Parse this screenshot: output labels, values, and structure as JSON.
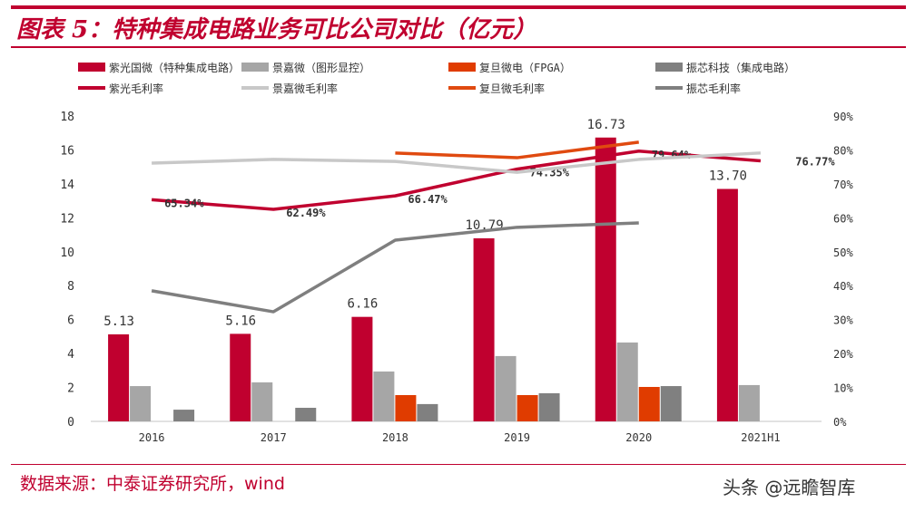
{
  "title": "图表 5：特种集成电路业务可比公司对比（亿元）",
  "source": "数据来源：中泰证券研究所，wind",
  "watermark": "头条 @远瞻智库",
  "chart_data": {
    "type": "bar+line",
    "categories": [
      "2016",
      "2017",
      "2018",
      "2019",
      "2020",
      "2021H1"
    ],
    "y_left": {
      "range": [
        0,
        18
      ],
      "ticks": [
        0,
        2,
        4,
        6,
        8,
        10,
        12,
        14,
        16,
        18
      ]
    },
    "y_right": {
      "range": [
        0,
        90
      ],
      "ticks": [
        "0%",
        "10%",
        "20%",
        "30%",
        "40%",
        "50%",
        "60%",
        "70%",
        "80%",
        "90%"
      ]
    },
    "grid": false,
    "legend_position": "top",
    "bar_series": [
      {
        "name": "紫光国微（特种集成电路）",
        "color": "#c0002f",
        "values": [
          5.13,
          5.16,
          6.16,
          10.79,
          16.73,
          13.7
        ],
        "labels": [
          "5.13",
          "5.16",
          "6.16",
          "10.79",
          "16.73",
          "13.70"
        ]
      },
      {
        "name": "景嘉微（图形显控）",
        "color": "#a6a6a6",
        "values": [
          2.08,
          2.3,
          2.94,
          3.85,
          4.65,
          2.14
        ]
      },
      {
        "name": "复旦微电（FPGA）",
        "color": "#e03c00",
        "values": [
          null,
          null,
          1.55,
          1.55,
          2.03,
          null
        ]
      },
      {
        "name": "振芯科技（集成电路）",
        "color": "#808080",
        "values": [
          0.69,
          0.8,
          1.02,
          1.66,
          2.08,
          null
        ]
      }
    ],
    "line_series": [
      {
        "name": "紫光毛利率",
        "color": "#c0002f",
        "values": [
          65.34,
          62.49,
          66.47,
          74.35,
          79.64,
          76.77
        ],
        "labels": [
          "65.34%",
          "62.49%",
          "66.47%",
          "74.35%",
          "79.64%",
          "76.77%"
        ]
      },
      {
        "name": "景嘉微毛利率",
        "color": "#c8c8c8",
        "values": [
          76.1,
          77.2,
          76.6,
          73.4,
          77.2,
          79.1
        ]
      },
      {
        "name": "复旦微毛利率",
        "color": "#e04a10",
        "values": [
          null,
          null,
          79.1,
          77.7,
          82.3,
          null
        ]
      },
      {
        "name": "振芯毛利率",
        "color": "#7f7f7f",
        "values": [
          38.5,
          32.3,
          53.4,
          57.2,
          58.5,
          null
        ]
      }
    ]
  }
}
